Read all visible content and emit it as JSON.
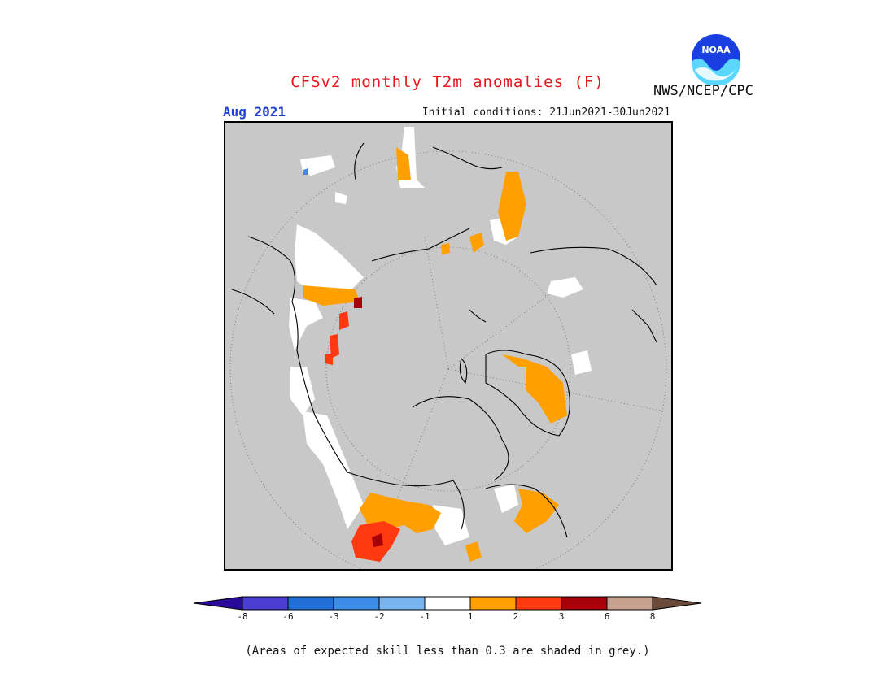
{
  "header": {
    "title": "CFSv2 monthly T2m anomalies (F)",
    "valid_month": "Aug 2021",
    "initial_conditions": "Initial conditions: 21Jun2021-30Jun2021",
    "agency": "NWS/NCEP/CPC",
    "logo_text": "NOAA"
  },
  "map": {
    "projection": "north polar stereographic",
    "background_color": "#c8c8c8"
  },
  "legend": {
    "colors": [
      "#2a0a9a",
      "#4a3ed0",
      "#1f6fd6",
      "#3c8ce8",
      "#78b4f0",
      "#ffffff",
      "#ffa000",
      "#ff3a10",
      "#a80008",
      "#c8a090",
      "#6b4a3a"
    ],
    "tick_labels": [
      "-8",
      "-6",
      "-3",
      "-2",
      "-1",
      "1",
      "2",
      "3",
      "6",
      "8"
    ]
  },
  "footnote": "(Areas of expected skill less than 0.3 are shaded in grey.)"
}
